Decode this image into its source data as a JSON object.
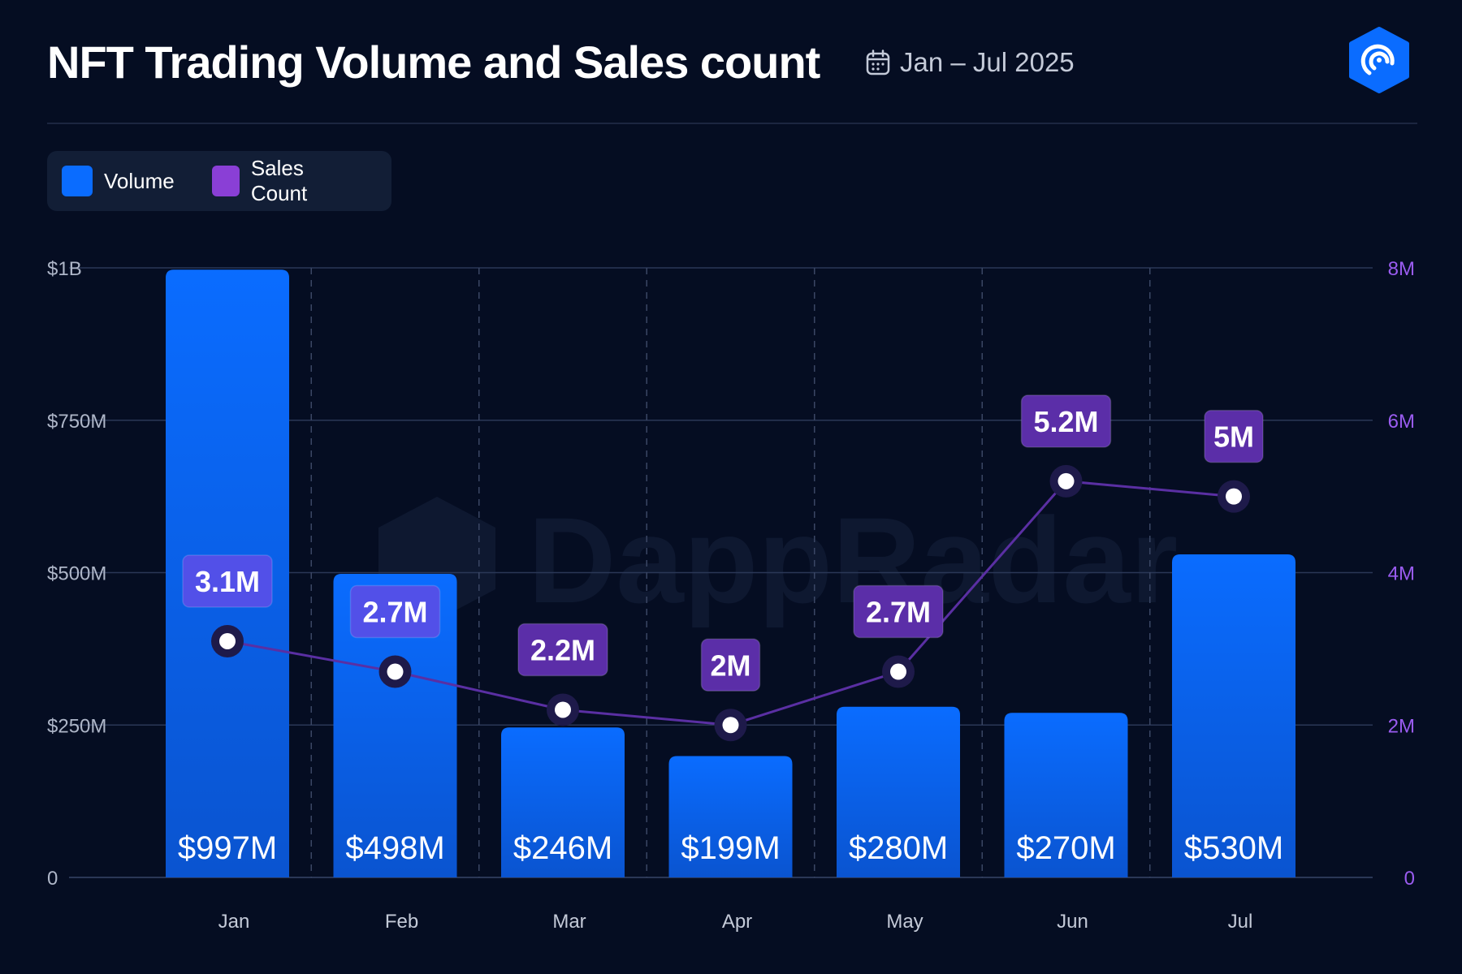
{
  "header": {
    "title": "NFT Trading Volume and Sales count",
    "date_range": "Jan – Jul 2025",
    "calendar_icon": "calendar-icon",
    "logo_icon": "dappradar-logo-icon"
  },
  "colors": {
    "background": "#050d22",
    "volume": "#0a6cff",
    "sales_line": "#5a2fa3",
    "sales_label_bg": "#5b2ea8",
    "sales_label_bg_alt": "#5250e8",
    "right_axis": "#9a5cf0",
    "grid": "#2a3756"
  },
  "chart_data": {
    "type": "bar",
    "title": "NFT Trading Volume and Sales count",
    "subtitle": "Jan – Jul 2025",
    "categories": [
      "Jan",
      "Feb",
      "Mar",
      "Apr",
      "May",
      "Jun",
      "Jul"
    ],
    "series": [
      {
        "name": "Volume",
        "type": "bar",
        "axis": "left",
        "unit": "USD",
        "values": [
          997000000,
          498000000,
          246000000,
          199000000,
          280000000,
          270000000,
          530000000
        ],
        "labels": [
          "$997M",
          "$498M",
          "$246M",
          "$199M",
          "$280M",
          "$270M",
          "$530M"
        ]
      },
      {
        "name": "Sales Count",
        "type": "line",
        "axis": "right",
        "values": [
          3100000,
          2700000,
          2200000,
          2000000,
          2700000,
          5200000,
          5000000
        ],
        "labels": [
          "3.1M",
          "2.7M",
          "2.2M",
          "2M",
          "2.7M",
          "5.2M",
          "5M"
        ]
      }
    ],
    "y_left": {
      "ylim": [
        0,
        1000000000
      ],
      "ticks": [
        "0",
        "$250M",
        "$500M",
        "$750M",
        "$1B"
      ]
    },
    "y_right": {
      "ylim": [
        0,
        8000000
      ],
      "ticks": [
        "0",
        "2M",
        "4M",
        "6M",
        "8M"
      ]
    },
    "grid": true,
    "legend_position": "top-left",
    "watermark": "DappRadar"
  }
}
